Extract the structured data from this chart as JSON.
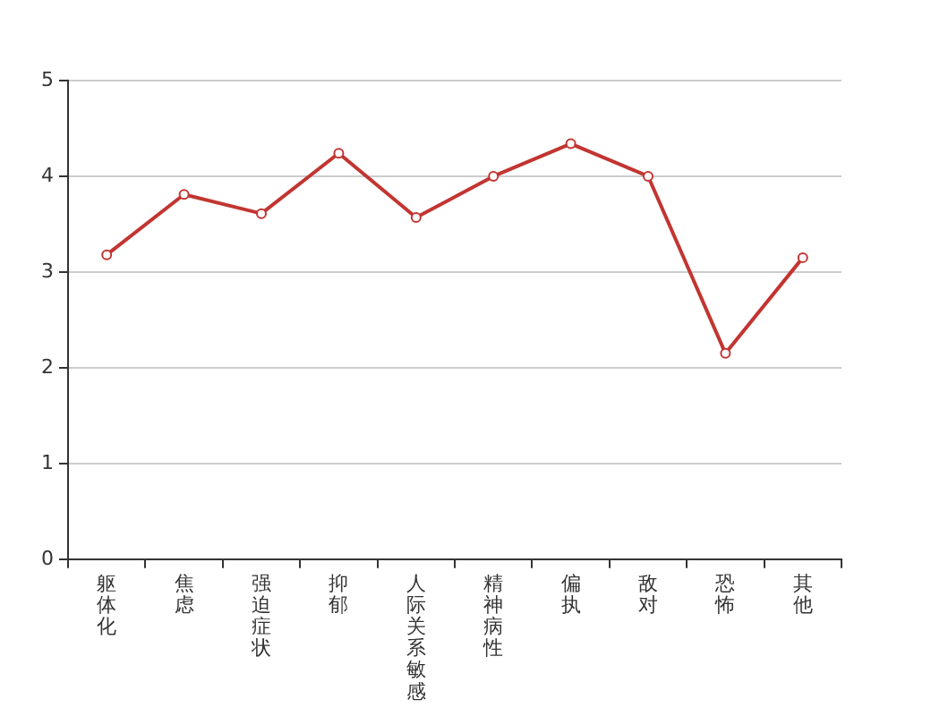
{
  "chart_data": {
    "type": "line",
    "categories": [
      "躯体化",
      "焦虑",
      "强迫症状",
      "抑郁",
      "人际关系敏感",
      "精神病性",
      "偏执",
      "敌对",
      "恐怖",
      "其他"
    ],
    "series": [
      {
        "color": "#c23531",
        "values": [
          3.18,
          3.81,
          3.61,
          4.24,
          3.57,
          4.0,
          4.34,
          4.0,
          2.15,
          3.15
        ]
      }
    ],
    "ylim": [
      0,
      5
    ],
    "yticks": [
      0,
      1,
      2,
      3,
      4,
      5
    ],
    "grid": "y",
    "legend": false,
    "marker": "circle",
    "line_style": "solid"
  }
}
